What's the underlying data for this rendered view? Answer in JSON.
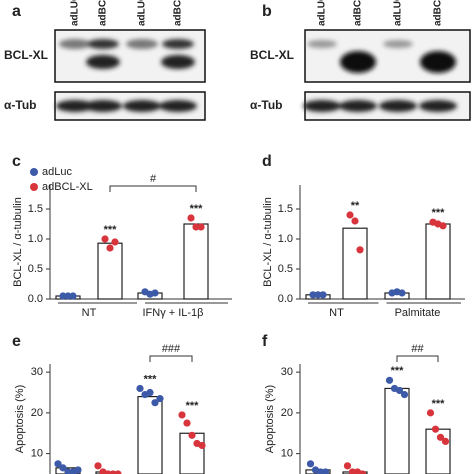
{
  "blots": [
    {
      "panel_label": "a",
      "lanes": [
        "adLUC",
        "adBCL",
        "adLUC",
        "adBCL"
      ],
      "rows": [
        "BCL-XL",
        "α-Tub"
      ]
    },
    {
      "panel_label": "b",
      "lanes": [
        "adLUC",
        "adBCL",
        "adLUC",
        "adBCL"
      ],
      "rows": [
        "BCL-XL",
        "α-Tub"
      ]
    }
  ],
  "chart_data": [
    {
      "type": "bar",
      "panel_label": "c",
      "ylabel": "BCL-XL / α-tubulin",
      "categories": [
        "NT",
        "IFNγ + IL-1β"
      ],
      "legend": "upper left",
      "bracket": "#",
      "ylim": [
        0,
        1.9
      ],
      "yticks": [
        {
          "value": 0,
          "label": "0.0"
        },
        0.5,
        {
          "value": 1,
          "label": "1.0"
        },
        1.5
      ],
      "series": [
        {
          "name": "adLuc",
          "color": "#3c5aa8",
          "values": [
            0.05,
            0.1
          ],
          "points": [
            [
              0.05,
              0.05,
              0.05
            ],
            [
              0.12,
              0.08,
              0.1
            ]
          ],
          "significance": [
            null,
            null
          ]
        },
        {
          "name": "adBCL-XL",
          "color": "#d8343c",
          "values": [
            0.93,
            1.25
          ],
          "points": [
            [
              1.0,
              0.85,
              0.95
            ],
            [
              1.35,
              1.2,
              1.2
            ]
          ],
          "significance": [
            "***",
            "***"
          ]
        }
      ]
    },
    {
      "type": "bar",
      "panel_label": "d",
      "ylabel": "BCL-XL / α-tubulin",
      "categories": [
        "NT",
        "Palmitate"
      ],
      "ylim": [
        0,
        1.9
      ],
      "yticks": [
        {
          "value": 0,
          "label": "0.0"
        },
        0.5,
        {
          "value": 1,
          "label": "1.0"
        },
        1.5
      ],
      "series": [
        {
          "color": "#3c5aa8",
          "values": [
            0.07,
            0.1
          ],
          "points": [
            [
              0.07,
              0.07,
              0.07
            ],
            [
              0.1,
              0.12,
              0.1
            ]
          ],
          "significance": [
            null,
            null
          ]
        },
        {
          "color": "#d8343c",
          "values": [
            1.18,
            1.25
          ],
          "points": [
            [
              1.4,
              1.3,
              0.82
            ],
            [
              1.28,
              1.25,
              1.22
            ]
          ],
          "significance": [
            "**",
            "***"
          ]
        }
      ]
    },
    {
      "type": "bar",
      "panel_label": "e",
      "ylabel": "Apoptosis (%)",
      "categories": [
        null,
        null
      ],
      "bracket": "###",
      "ylim": [
        5,
        32
      ],
      "yticks": [
        10,
        20,
        30
      ],
      "series": [
        {
          "color": "#3c5aa8",
          "values": [
            6.5,
            24
          ],
          "points": [
            [
              7.5,
              6.5,
              5.5,
              5.5,
              6
            ],
            [
              26,
              24.5,
              25,
              22.5,
              23.5
            ]
          ],
          "significance": [
            null,
            "***"
          ]
        },
        {
          "color": "#d8343c",
          "values": [
            5.5,
            15
          ],
          "points": [
            [
              7,
              5.5,
              5,
              5,
              5
            ],
            [
              19.5,
              17.5,
              14.5,
              12.5,
              12
            ]
          ],
          "significance": [
            null,
            "***"
          ]
        }
      ]
    },
    {
      "type": "bar",
      "panel_label": "f",
      "ylabel": "Apoptosis (%)",
      "categories": [
        null,
        null
      ],
      "bracket": "##",
      "ylim": [
        5,
        32
      ],
      "yticks": [
        10,
        20,
        30
      ],
      "series": [
        {
          "color": "#3c5aa8",
          "values": [
            6,
            26
          ],
          "points": [
            [
              7.5,
              6,
              5.5,
              5.5
            ],
            [
              28,
              26,
              25.5,
              24.5
            ]
          ],
          "significance": [
            null,
            "***"
          ]
        },
        {
          "color": "#d8343c",
          "values": [
            5.5,
            16
          ],
          "points": [
            [
              7,
              5.5,
              5.5,
              5
            ],
            [
              20,
              16,
              14,
              13
            ]
          ],
          "significance": [
            null,
            "***"
          ]
        }
      ]
    }
  ]
}
